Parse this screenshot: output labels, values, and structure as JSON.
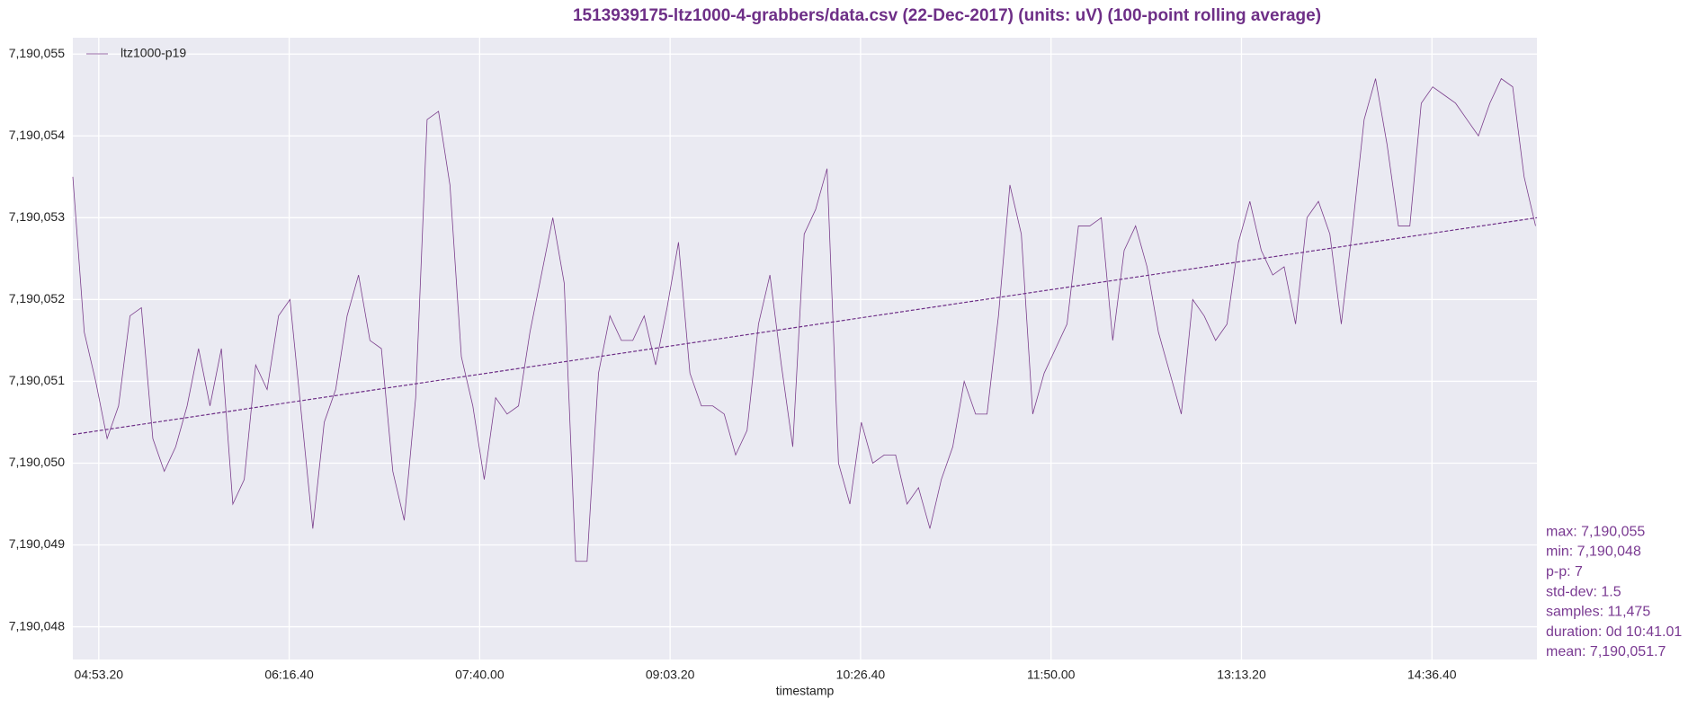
{
  "chart_data": {
    "type": "line",
    "title": "1513939175-ltz1000-4-grabbers/data.csv (22-Dec-2017) (units: uV) (100-point rolling average)",
    "xlabel": "timestamp",
    "legend": "upper left",
    "grid": true,
    "xlim": [
      "04:42:00",
      "15:22:36"
    ],
    "ylim": [
      7190047.6,
      7190055.2
    ],
    "xticks": [
      {
        "value": "04:53:20",
        "label": "04:53.20"
      },
      {
        "value": "06:16:40",
        "label": "06:16.40"
      },
      {
        "value": "07:40:00",
        "label": "07:40.00"
      },
      {
        "value": "09:03:20",
        "label": "09:03.20"
      },
      {
        "value": "10:26:40",
        "label": "10:26.40"
      },
      {
        "value": "11:50:00",
        "label": "11:50.00"
      },
      {
        "value": "13:13:20",
        "label": "13:13.20"
      },
      {
        "value": "14:36:40",
        "label": "14:36.40"
      }
    ],
    "yticks": [
      {
        "value": 7190048,
        "label": "7,190,048"
      },
      {
        "value": 7190049,
        "label": "7,190,049"
      },
      {
        "value": 7190050,
        "label": "7,190,050"
      },
      {
        "value": 7190051,
        "label": "7,190,051"
      },
      {
        "value": 7190052,
        "label": "7,190,052"
      },
      {
        "value": 7190053,
        "label": "7,190,053"
      },
      {
        "value": 7190054,
        "label": "7,190,054"
      },
      {
        "value": 7190055,
        "label": "7,190,055"
      }
    ],
    "x": [
      "04:42:00",
      "04:47:00",
      "04:52:00",
      "04:57:00",
      "05:02:00",
      "05:07:00",
      "05:12:00",
      "05:17:00",
      "05:22:00",
      "05:27:00",
      "05:32:00",
      "05:37:00",
      "05:42:00",
      "05:47:00",
      "05:52:00",
      "05:57:00",
      "06:02:00",
      "06:07:00",
      "06:12:00",
      "06:17:00",
      "06:22:00",
      "06:27:00",
      "06:32:00",
      "06:37:00",
      "06:42:00",
      "06:47:00",
      "06:52:00",
      "06:57:00",
      "07:02:00",
      "07:07:00",
      "07:12:00",
      "07:17:00",
      "07:22:00",
      "07:27:00",
      "07:32:00",
      "07:37:00",
      "07:42:00",
      "07:47:00",
      "07:52:00",
      "07:57:00",
      "08:02:00",
      "08:07:00",
      "08:12:00",
      "08:17:00",
      "08:22:00",
      "08:27:00",
      "08:32:00",
      "08:37:00",
      "08:42:00",
      "08:47:00",
      "08:52:00",
      "08:57:00",
      "09:02:00",
      "09:07:00",
      "09:12:00",
      "09:17:00",
      "09:22:00",
      "09:27:00",
      "09:32:00",
      "09:37:00",
      "09:42:00",
      "09:47:00",
      "09:52:00",
      "09:57:00",
      "10:02:00",
      "10:07:00",
      "10:12:00",
      "10:17:00",
      "10:22:00",
      "10:27:00",
      "10:32:00",
      "10:37:00",
      "10:42:00",
      "10:47:00",
      "10:52:00",
      "10:57:00",
      "11:02:00",
      "11:07:00",
      "11:12:00",
      "11:17:00",
      "11:22:00",
      "11:27:00",
      "11:32:00",
      "11:37:00",
      "11:42:00",
      "11:47:00",
      "11:52:00",
      "11:57:00",
      "12:02:00",
      "12:07:00",
      "12:12:00",
      "12:17:00",
      "12:22:00",
      "12:27:00",
      "12:32:00",
      "12:37:00",
      "12:42:00",
      "12:47:00",
      "12:52:00",
      "12:57:00",
      "13:02:00",
      "13:07:00",
      "13:12:00",
      "13:17:00",
      "13:22:00",
      "13:27:00",
      "13:32:00",
      "13:37:00",
      "13:42:00",
      "13:47:00",
      "13:52:00",
      "13:57:00",
      "14:02:00",
      "14:07:00",
      "14:12:00",
      "14:17:00",
      "14:22:00",
      "14:27:00",
      "14:32:00",
      "14:37:00",
      "14:42:00",
      "14:47:00",
      "14:52:00",
      "14:57:00",
      "15:02:00",
      "15:07:00",
      "15:12:00",
      "15:17:00",
      "15:22:00"
    ],
    "series": [
      {
        "name": "ltz1000-p19",
        "color": "#7b3f8c",
        "values": [
          7190053.5,
          7190051.6,
          7190051.0,
          7190050.3,
          7190050.7,
          7190051.8,
          7190051.9,
          7190050.3,
          7190049.9,
          7190050.2,
          7190050.7,
          7190051.4,
          7190050.7,
          7190051.4,
          7190049.5,
          7190049.8,
          7190051.2,
          7190050.9,
          7190051.8,
          7190052.0,
          7190050.6,
          7190049.2,
          7190050.5,
          7190050.9,
          7190051.8,
          7190052.3,
          7190051.5,
          7190051.4,
          7190049.9,
          7190049.3,
          7190050.8,
          7190054.2,
          7190054.3,
          7190053.4,
          7190051.3,
          7190050.7,
          7190049.8,
          7190050.8,
          7190050.6,
          7190050.7,
          7190051.6,
          7190052.3,
          7190053.0,
          7190052.2,
          7190048.8,
          7190048.8,
          7190051.1,
          7190051.8,
          7190051.5,
          7190051.5,
          7190051.8,
          7190051.2,
          7190051.9,
          7190052.7,
          7190051.1,
          7190050.7,
          7190050.7,
          7190050.6,
          7190050.1,
          7190050.4,
          7190051.7,
          7190052.3,
          7190051.2,
          7190050.2,
          7190052.8,
          7190053.1,
          7190053.6,
          7190050.0,
          7190049.5,
          7190050.5,
          7190050.0,
          7190050.1,
          7190050.1,
          7190049.5,
          7190049.7,
          7190049.2,
          7190049.8,
          7190050.2,
          7190051.0,
          7190050.6,
          7190050.6,
          7190051.8,
          7190053.4,
          7190052.8,
          7190050.6,
          7190051.1,
          7190051.4,
          7190051.7,
          7190052.9,
          7190052.9,
          7190053.0,
          7190051.5,
          7190052.6,
          7190052.9,
          7190052.4,
          7190051.6,
          7190051.1,
          7190050.6,
          7190052.0,
          7190051.8,
          7190051.5,
          7190051.7,
          7190052.7,
          7190053.2,
          7190052.6,
          7190052.3,
          7190052.4,
          7190051.7,
          7190053.0,
          7190053.2,
          7190052.8,
          7190051.7,
          7190052.9,
          7190054.2,
          7190054.7,
          7190053.9,
          7190052.9,
          7190052.9,
          7190054.4,
          7190054.6,
          7190054.5,
          7190054.4,
          7190054.2,
          7190054.0,
          7190054.4,
          7190054.7,
          7190054.6,
          7190053.5,
          7190052.9
        ]
      }
    ],
    "trend": {
      "color": "#6e2f87",
      "x": [
        "04:42:00",
        "15:22:36"
      ],
      "values": [
        7190050.35,
        7190053.0
      ]
    },
    "annotations": [
      "max: 7,190,055",
      "min: 7,190,048",
      "p-p: 7",
      "std-dev: 1.5",
      "samples: 11,475",
      "duration: 0d 10:41.01",
      "mean: 7,190,051.7"
    ]
  }
}
